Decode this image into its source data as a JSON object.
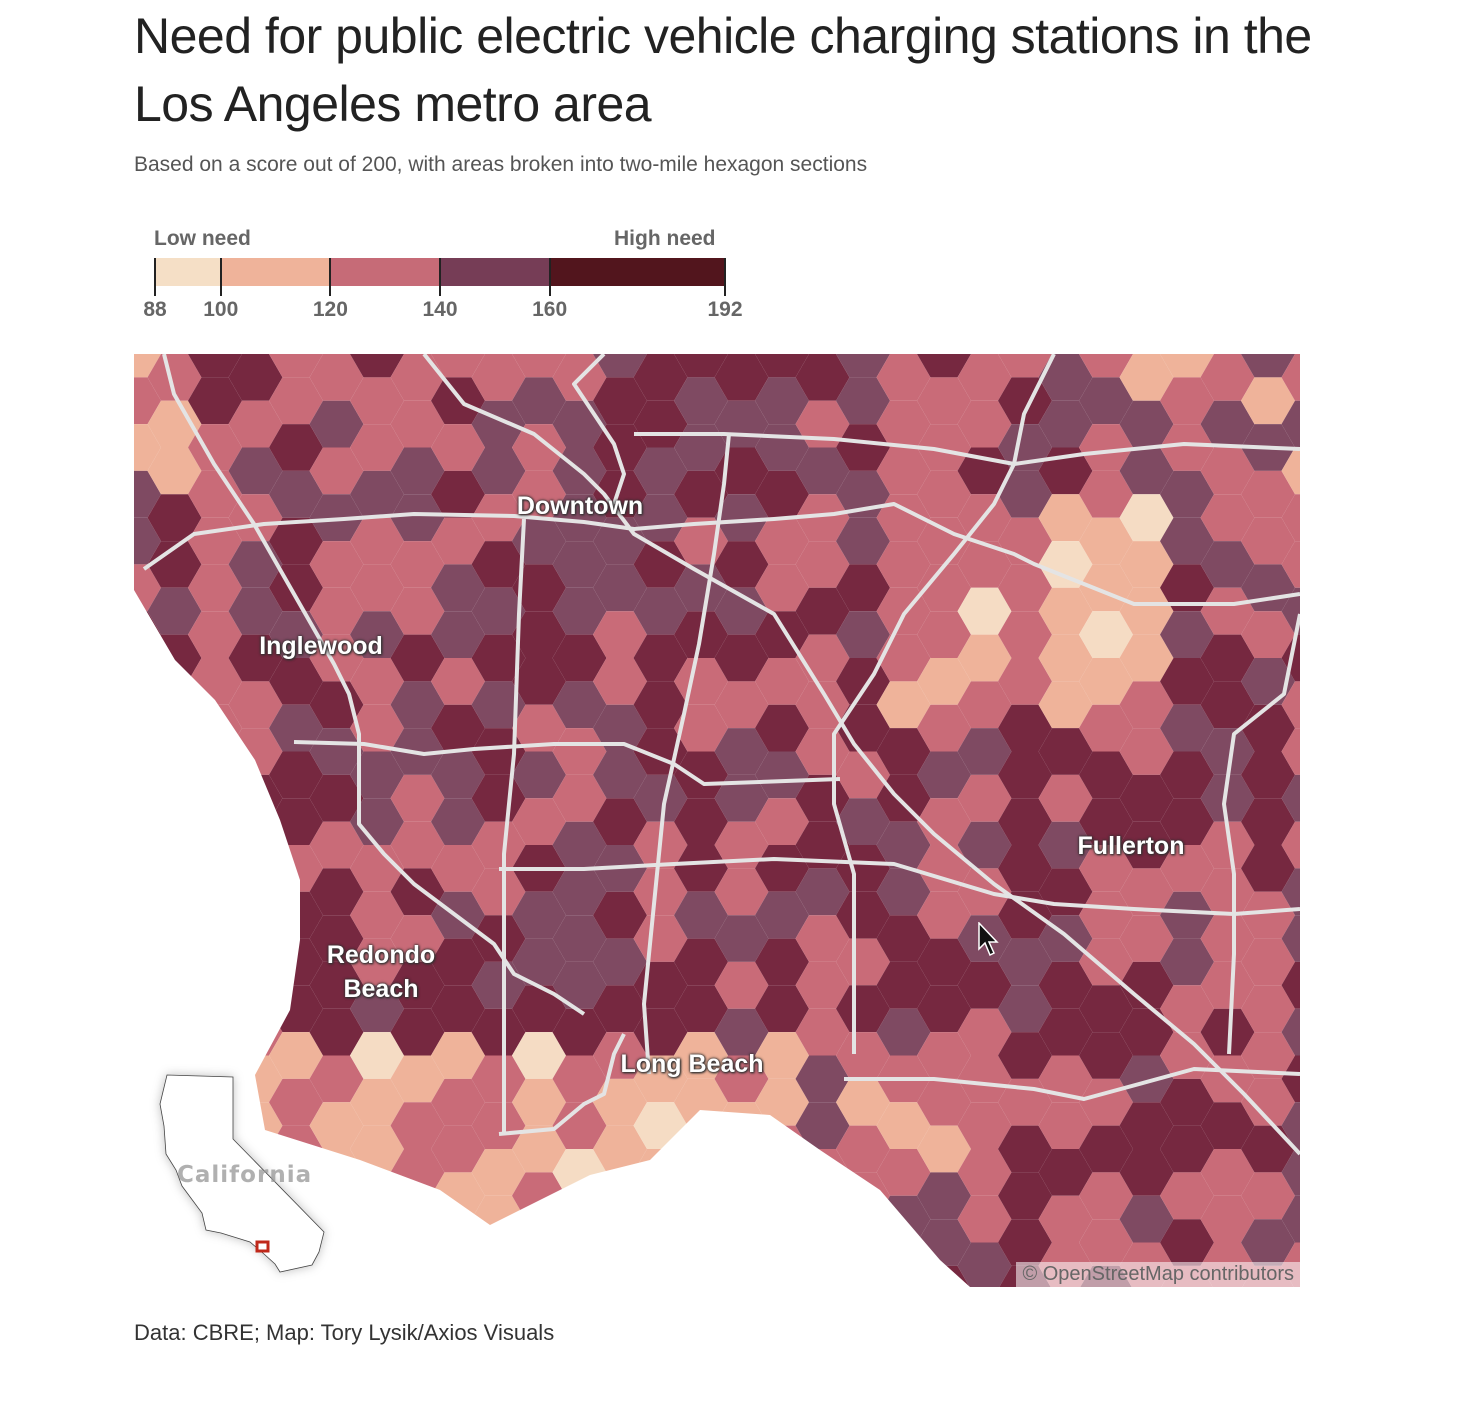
{
  "title": "Need for public electric vehicle charging stations in the Los Angeles metro area",
  "subtitle": "Based on a score out of 200, with areas broken into two-mile hexagon sections",
  "legend": {
    "low_label": "Low need",
    "high_label": "High need",
    "breaks": [
      "88",
      "100",
      "120",
      "140",
      "160",
      "192"
    ],
    "bins": [
      {
        "from": 88,
        "to": 100,
        "color": "#f5dfc6"
      },
      {
        "from": 100,
        "to": 120,
        "color": "#efb39a"
      },
      {
        "from": 120,
        "to": 140,
        "color": "#c66b77"
      },
      {
        "from": 140,
        "to": 160,
        "color": "#763d56"
      },
      {
        "from": 160,
        "to": 192,
        "color": "#52151d"
      }
    ]
  },
  "map": {
    "places": [
      "Downtown",
      "Inglewood",
      "Redondo Beach",
      "Long Beach",
      "Fullerton"
    ],
    "inset_label": "California",
    "credit": "© OpenStreetMap contributors"
  },
  "source": "Data: CBRE; Map: Tory Lysik/Axios Visuals"
}
